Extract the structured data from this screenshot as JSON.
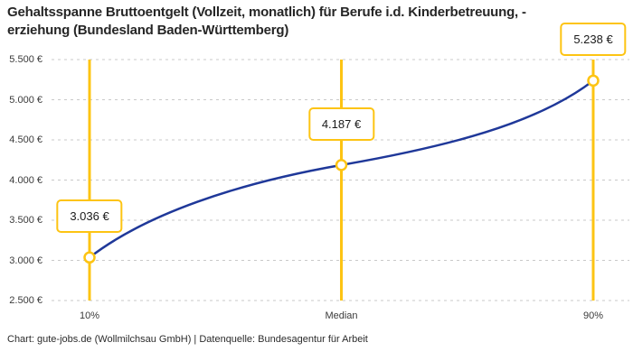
{
  "title_lines": [
    "Gehaltsspanne Bruttoentgelt (Vollzeit, monatlich) für Berufe i.d. Kinderbetreuung, -",
    "erziehung (Bundesland Baden-Württemberg)"
  ],
  "footer": "Chart: gute-jobs.de (Wollmilchsau GmbH) | Datenquelle: Bundesagentur für Arbeit",
  "colors": {
    "accent_yellow": "#FDC413",
    "line_blue": "#1F3899",
    "grid_gray": "#C9C9C9",
    "text_dark": "#262626"
  },
  "chart_data": {
    "type": "line",
    "title": "Gehaltsspanne Bruttoentgelt (Vollzeit, monatlich) für Berufe i.d. Kinderbetreuung, -erziehung (Bundesland Baden-Württemberg)",
    "categories": [
      "10%",
      "Median",
      "90%"
    ],
    "values": [
      3036,
      4187,
      5238
    ],
    "point_labels": [
      "3.036 €",
      "4.187 €",
      "5.238 €"
    ],
    "xlabel": "",
    "ylabel": "",
    "ylim": [
      2500,
      5500
    ],
    "ytick_step": 500,
    "ytick_labels": [
      "5.500 €",
      "5.000 €",
      "4.500 €",
      "4.000 €",
      "3.500 €",
      "3.000 €",
      "2.500 €"
    ],
    "grid": "horizontal-dashed",
    "legend": "none",
    "marker_style": "open-circle"
  }
}
